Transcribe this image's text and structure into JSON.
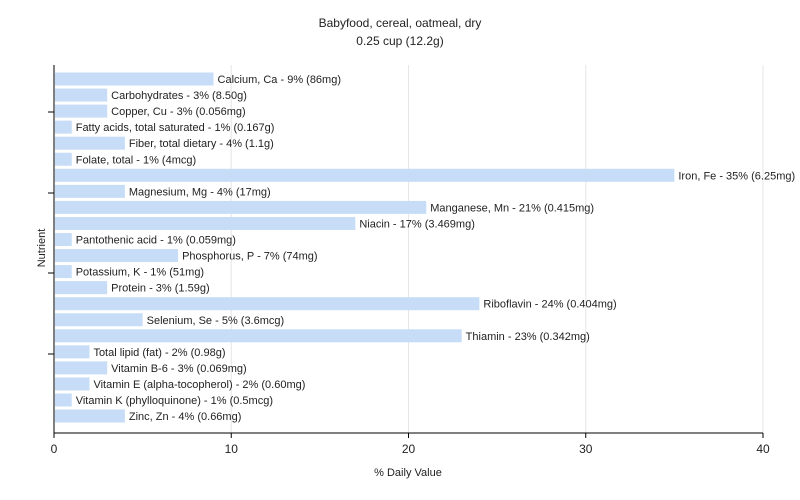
{
  "chart_data": {
    "type": "bar",
    "orientation": "horizontal",
    "title": "Babyfood, cereal, oatmeal, dry",
    "subtitle": "0.25 cup (12.2g)",
    "xlabel": "% Daily Value",
    "ylabel": "Nutrient",
    "xlim": [
      0,
      40
    ],
    "xticks": [
      0,
      10,
      20,
      30,
      40
    ],
    "grid": true,
    "bar_color": "#c6dcf7",
    "categories": [
      "Calcium, Ca",
      "Carbohydrates",
      "Copper, Cu",
      "Fatty acids, total saturated",
      "Fiber, total dietary",
      "Folate, total",
      "Iron, Fe",
      "Magnesium, Mg",
      "Manganese, Mn",
      "Niacin",
      "Pantothenic acid",
      "Phosphorus, P",
      "Potassium, K",
      "Protein",
      "Riboflavin",
      "Selenium, Se",
      "Thiamin",
      "Total lipid (fat)",
      "Vitamin B-6",
      "Vitamin E (alpha-tocopherol)",
      "Vitamin K (phylloquinone)",
      "Zinc, Zn"
    ],
    "values": [
      9,
      3,
      3,
      1,
      4,
      1,
      35,
      4,
      21,
      17,
      1,
      7,
      1,
      3,
      24,
      5,
      23,
      2,
      3,
      2,
      1,
      4
    ],
    "labels": [
      "Calcium, Ca - 9% (86mg)",
      "Carbohydrates - 3% (8.50g)",
      "Copper, Cu - 3% (0.056mg)",
      "Fatty acids, total saturated - 1% (0.167g)",
      "Fiber, total dietary - 4% (1.1g)",
      "Folate, total - 1% (4mcg)",
      "Iron, Fe - 35% (6.25mg)",
      "Magnesium, Mg - 4% (17mg)",
      "Manganese, Mn - 21% (0.415mg)",
      "Niacin - 17% (3.469mg)",
      "Pantothenic acid - 1% (0.059mg)",
      "Phosphorus, P - 7% (74mg)",
      "Potassium, K - 1% (51mg)",
      "Protein - 3% (1.59g)",
      "Riboflavin - 24% (0.404mg)",
      "Selenium, Se - 5% (3.6mcg)",
      "Thiamin - 23% (0.342mg)",
      "Total lipid (fat) - 2% (0.98g)",
      "Vitamin B-6 - 3% (0.069mg)",
      "Vitamin E (alpha-tocopherol) - 2% (0.60mg)",
      "Vitamin K (phylloquinone) - 1% (0.5mcg)",
      "Zinc, Zn - 4% (0.66mg)"
    ]
  }
}
